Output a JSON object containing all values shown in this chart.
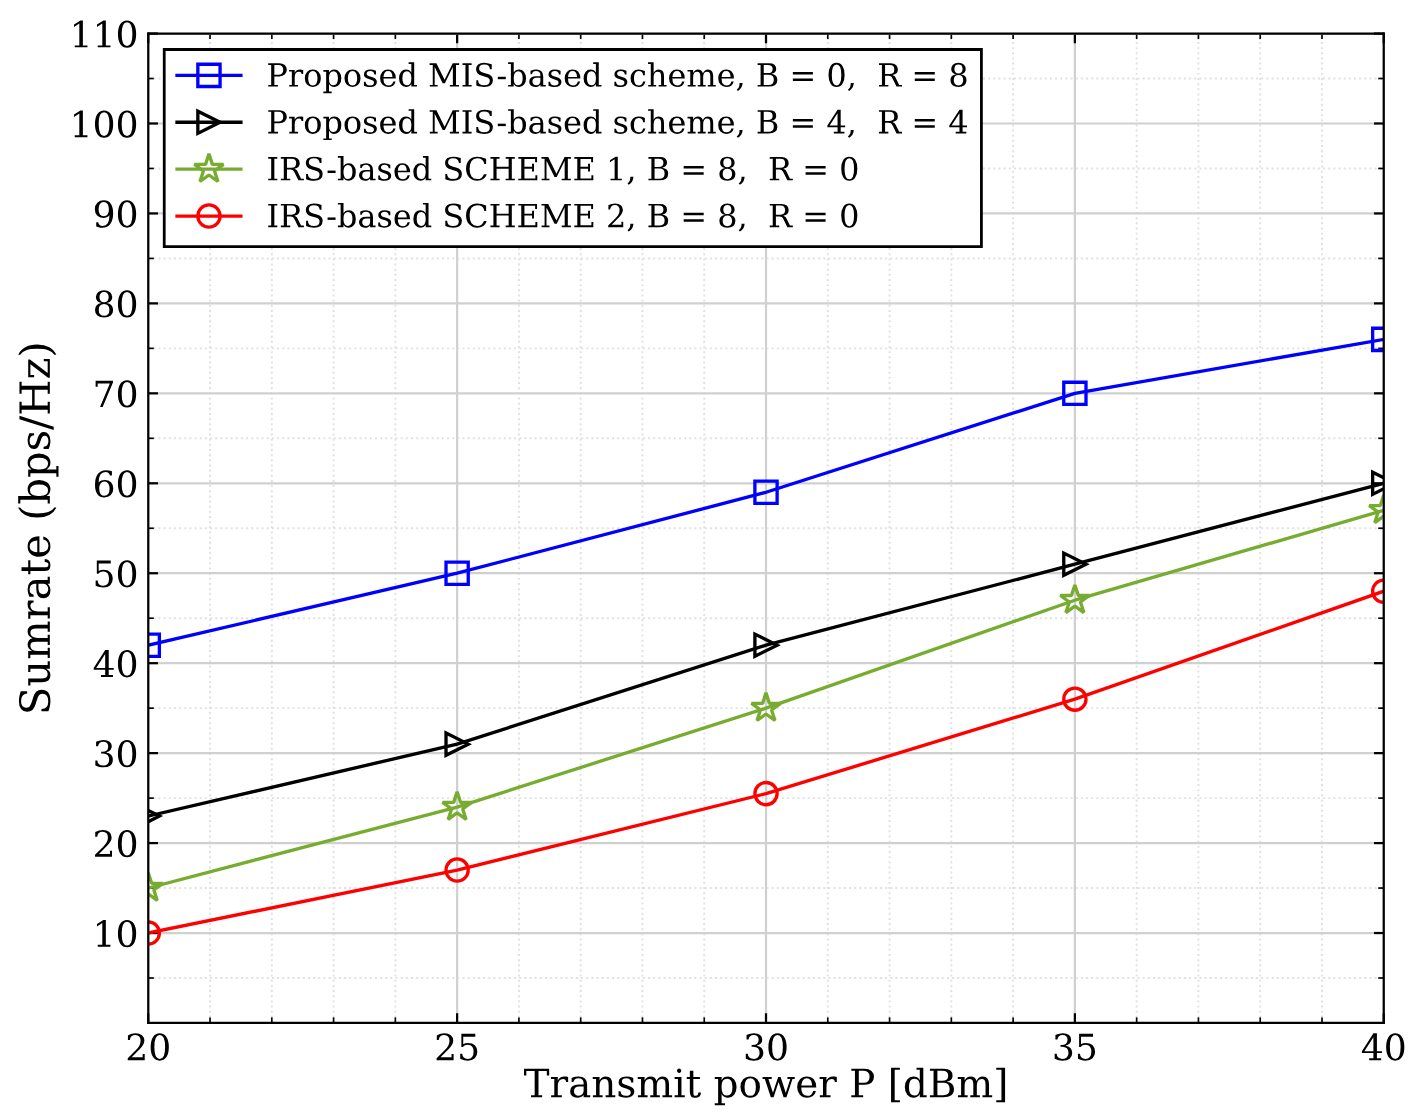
{
  "chart_data": {
    "type": "line",
    "xlabel": "Transmit power P [dBm]",
    "ylabel": "Sumrate (bps/Hz)",
    "x": [
      20,
      25,
      30,
      35,
      40
    ],
    "series": [
      {
        "name": "Proposed MIS-based scheme, B = 0,  R = 8",
        "color": "#0000ff",
        "marker": "square",
        "values": [
          42,
          50,
          59,
          70,
          76
        ]
      },
      {
        "name": "Proposed MIS-based scheme, B = 4,  R = 4",
        "color": "#000000",
        "marker": "triangle",
        "values": [
          23,
          31,
          42,
          51,
          60
        ]
      },
      {
        "name": "IRS-based SCHEME 1, B = 8,  R = 0",
        "color": "#77ac30",
        "marker": "star",
        "values": [
          15,
          24,
          35,
          47,
          57
        ]
      },
      {
        "name": "IRS-based SCHEME 2, B = 8,  R = 0",
        "color": "#ff0000",
        "marker": "circle",
        "values": [
          10,
          17,
          25.5,
          36,
          48
        ]
      }
    ],
    "xlim": [
      20,
      40
    ],
    "xticks": [
      20,
      25,
      30,
      35,
      40
    ],
    "ylim": [
      0,
      110
    ],
    "yticks": [
      10,
      20,
      30,
      40,
      50,
      60,
      70,
      80,
      90,
      100,
      110
    ],
    "grid": true,
    "legend": "top left",
    "line_style": "solid"
  }
}
